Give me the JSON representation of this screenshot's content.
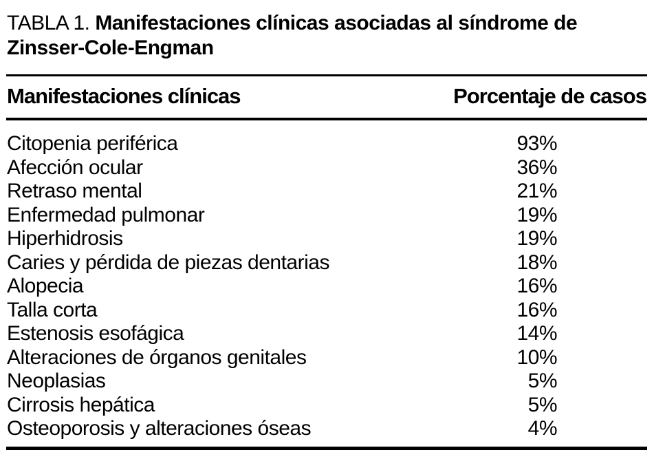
{
  "caption": {
    "label": "TABLA 1.",
    "title": "Manifestaciones clínicas asociadas al síndrome de Zinsser-Cole-Engman"
  },
  "table": {
    "header": {
      "left": "Manifestaciones clínicas",
      "right": "Porcentaje de casos"
    },
    "rows": [
      {
        "name": "Citopenia periférica",
        "value": "93%"
      },
      {
        "name": "Afección ocular",
        "value": "36%"
      },
      {
        "name": "Retraso mental",
        "value": "21%"
      },
      {
        "name": "Enfermedad pulmonar",
        "value": "19%"
      },
      {
        "name": "Hiperhidrosis",
        "value": "19%"
      },
      {
        "name": "Caries y pérdida de piezas dentarias",
        "value": "18%"
      },
      {
        "name": "Alopecia",
        "value": "16%"
      },
      {
        "name": "Talla corta",
        "value": "16%"
      },
      {
        "name": "Estenosis esofágica",
        "value": "14%"
      },
      {
        "name": "Alteraciones de órganos genitales",
        "value": "10%"
      },
      {
        "name": "Neoplasias",
        "value": "5%"
      },
      {
        "name": "Cirrosis hepática",
        "value": "5%"
      },
      {
        "name": "Osteoporosis y alteraciones óseas",
        "value": "4%"
      }
    ]
  },
  "colors": {
    "background": "#ffffff",
    "text": "#000000",
    "rule": "#000000"
  }
}
